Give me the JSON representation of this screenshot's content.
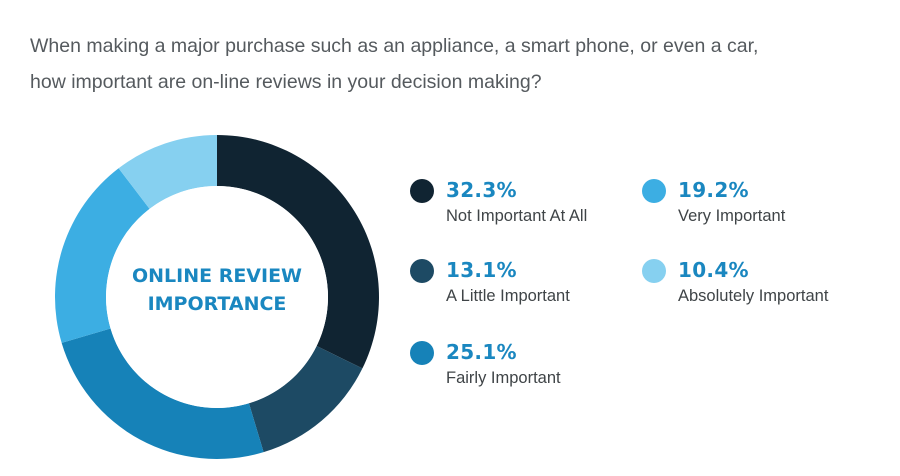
{
  "question": {
    "line1": "When making a major purchase such as an appliance, a smart phone, or even a car,",
    "line2": "how important  are on-line reviews in your decision making?"
  },
  "chart_data": {
    "type": "pie",
    "center_label": [
      "ONLINE REVIEW",
      "IMPORTANCE"
    ],
    "series": [
      {
        "name": "Not Important At All",
        "value": 32.3,
        "label": "32.3%",
        "color": "#102432"
      },
      {
        "name": "A Little Important",
        "value": 13.1,
        "label": "13.1%",
        "color": "#1d4a64"
      },
      {
        "name": "Fairly Important",
        "value": 25.1,
        "label": "25.1%",
        "color": "#1682b8"
      },
      {
        "name": "Very Important",
        "value": 19.2,
        "label": "19.2%",
        "color": "#3caee3"
      },
      {
        "name": "Absolutely Important",
        "value": 10.4,
        "label": "10.4%",
        "color": "#86d0f0"
      }
    ],
    "accent_color": "#1a87c0"
  }
}
